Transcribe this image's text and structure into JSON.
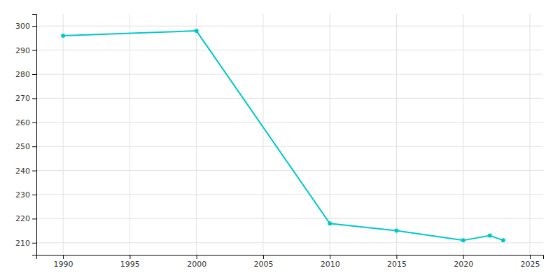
{
  "chart_data": {
    "type": "line",
    "x": [
      1990,
      2000,
      2010,
      2015,
      2020,
      2022,
      2023
    ],
    "values": [
      296,
      298,
      218,
      215,
      211,
      213,
      211
    ],
    "color": "#00C8C8",
    "marker": "circle",
    "xlim": [
      1988,
      2026
    ],
    "ylim": [
      205,
      305
    ],
    "xticks": [
      1990,
      1995,
      2000,
      2005,
      2010,
      2015,
      2020,
      2025
    ],
    "yticks": [
      210,
      220,
      230,
      240,
      250,
      260,
      270,
      280,
      290,
      300
    ],
    "grid": true
  }
}
